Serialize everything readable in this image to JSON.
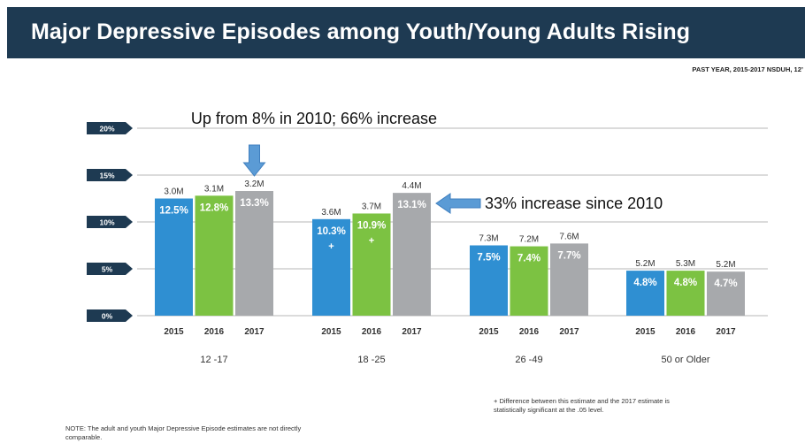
{
  "page": {
    "title": "Major Depressive Episodes among Youth/Young Adults Rising",
    "source": "PAST YEAR, 2015-2017 NSDUH, 12’",
    "note_left": "NOTE: The adult and youth Major Depressive Episode estimates are not directly comparable.",
    "note_right": "+ Difference between this estimate and the 2017 estimate is statistically significant at the .05 level."
  },
  "colors": {
    "2015": "#2f8fd2",
    "2016": "#7cc242",
    "2017": "#a7a9ac",
    "title_bar": "#1e3a52",
    "arrow": "#5b9bd5"
  },
  "chart_data": {
    "type": "bar",
    "title": "",
    "xlabel": "",
    "ylabel": "",
    "ylim": [
      0,
      20
    ],
    "yticks": [
      "0%",
      "5%",
      "10%",
      "15%",
      "20%"
    ],
    "ytick_values": [
      0,
      5,
      10,
      15,
      20
    ],
    "grid": true,
    "legend": "none",
    "groups": [
      "12 -17",
      "18 -25",
      "26 -49",
      "50 or Older"
    ],
    "years": [
      "2015",
      "2016",
      "2017"
    ],
    "values": [
      [
        12.5,
        12.8,
        13.3
      ],
      [
        10.3,
        10.9,
        13.1
      ],
      [
        7.5,
        7.4,
        7.7
      ],
      [
        4.8,
        4.8,
        4.7
      ]
    ],
    "value_labels": [
      [
        "12.5%",
        "12.8%",
        "13.3%"
      ],
      [
        "10.3%",
        "10.9%",
        "13.1%"
      ],
      [
        "7.5%",
        "7.4%",
        "7.7%"
      ],
      [
        "4.8%",
        "4.8%",
        "4.7%"
      ]
    ],
    "counts": [
      [
        "3.0M",
        "3.1M",
        "3.2M"
      ],
      [
        "3.6M",
        "3.7M",
        "4.4M"
      ],
      [
        "7.3M",
        "7.2M",
        "7.6M"
      ],
      [
        "5.2M",
        "5.3M",
        "5.2M"
      ]
    ],
    "significance_marks": [
      [
        "",
        "",
        ""
      ],
      [
        "+",
        "+",
        ""
      ],
      [
        "",
        "",
        ""
      ],
      [
        "",
        "",
        ""
      ]
    ],
    "annotations": [
      {
        "text": "Up from 8% in 2010; 66% increase",
        "target": "12 -17 / 2017",
        "arrow": "down"
      },
      {
        "text": "33% increase since 2010",
        "target": "18 -25 / 2017",
        "arrow": "left"
      }
    ]
  }
}
